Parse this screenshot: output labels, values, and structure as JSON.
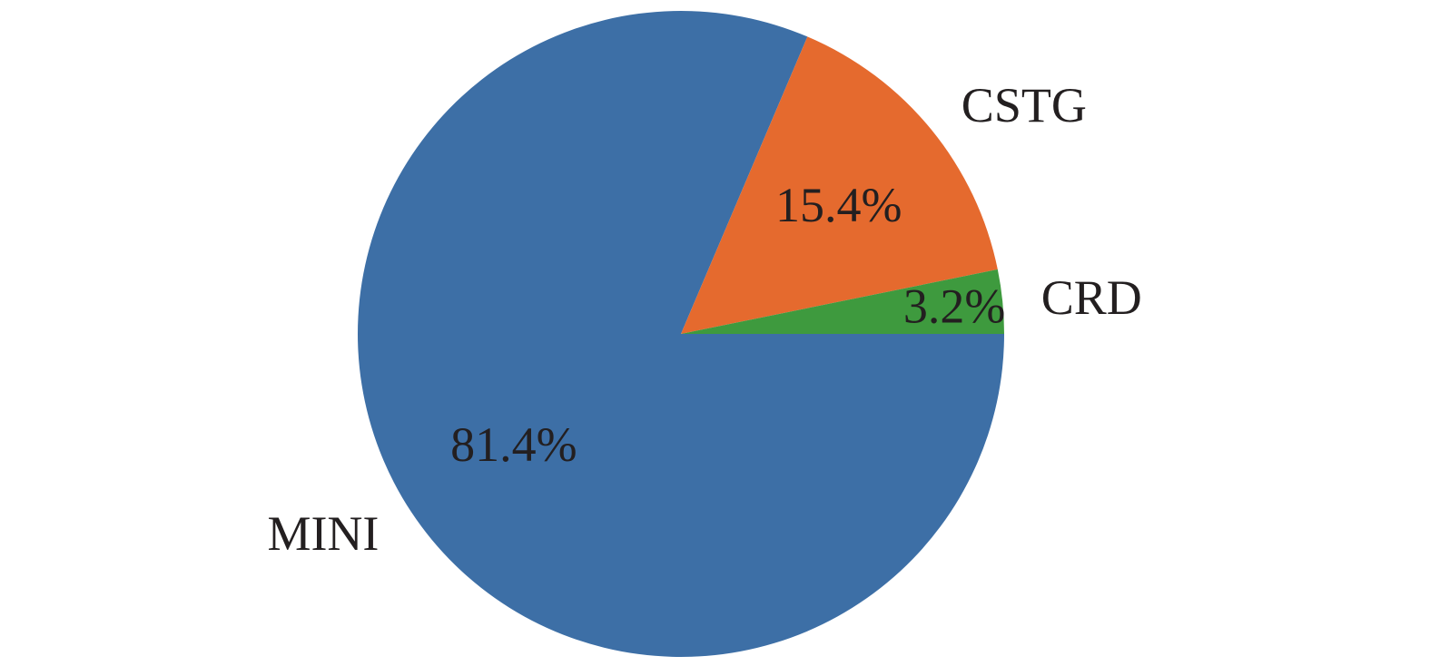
{
  "chart_data": {
    "type": "pie",
    "title": "",
    "slices": [
      {
        "label": "MINI",
        "value": 81.4,
        "value_label": "81.4%",
        "color": "#3d6fa6"
      },
      {
        "label": "CSTG",
        "value": 15.4,
        "value_label": "15.4%",
        "color": "#e56a2e"
      },
      {
        "label": "CRD",
        "value": 3.2,
        "value_label": "3.2%",
        "color": "#3e9a3e"
      }
    ],
    "start_angle_deg": 0,
    "direction": "counterclockwise",
    "legend": "none"
  }
}
